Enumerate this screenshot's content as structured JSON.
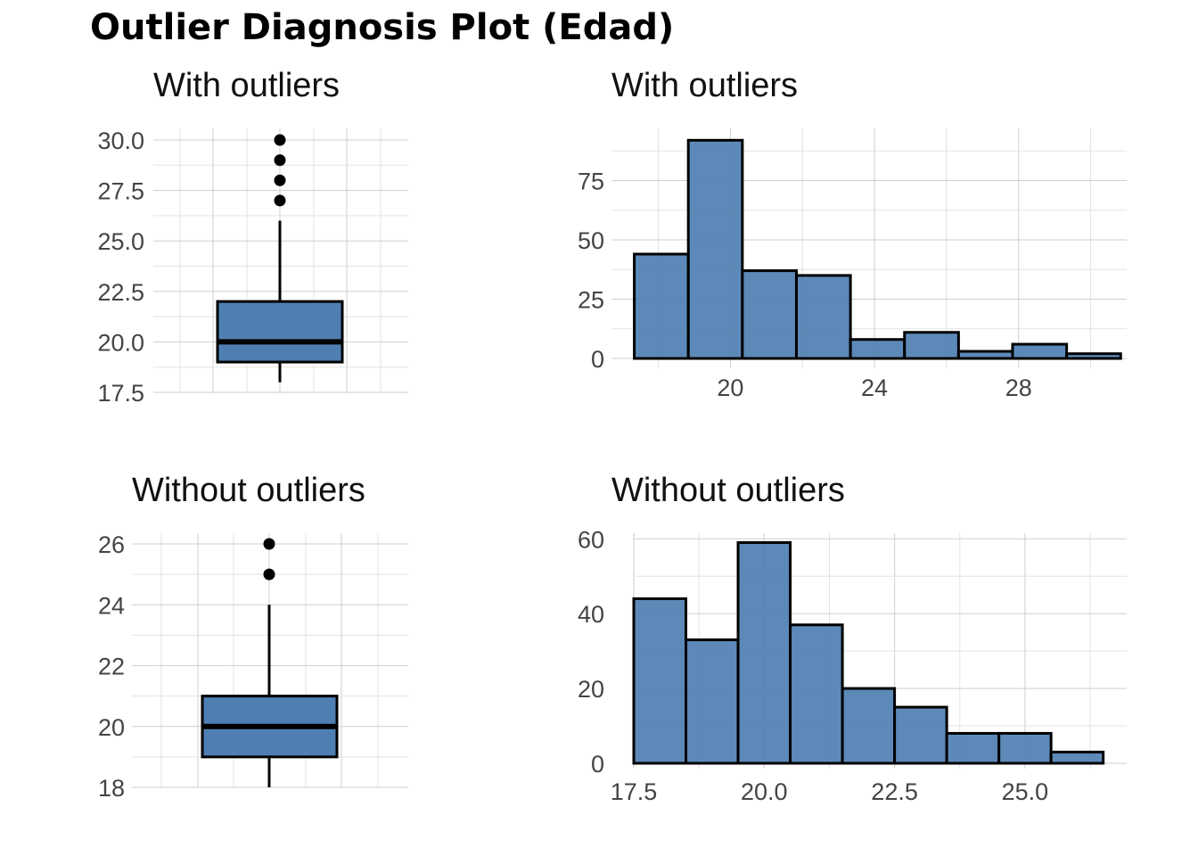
{
  "title": "Outlier Diagnosis Plot (Edad)",
  "colors": {
    "fill": "#4f7fb2",
    "outline": "#000000",
    "grid_major": "#cfcfcf",
    "grid_minor": "#e3e3e3",
    "tick_text": "#444444"
  },
  "chart_data": [
    {
      "type": "box",
      "subtitle": "With outliers",
      "ylim": [
        17.5,
        30.0
      ],
      "yticks": [
        17.5,
        20.0,
        22.5,
        25.0,
        27.5,
        30.0
      ],
      "ytick_labels": [
        "17.5",
        "20.0",
        "22.5",
        "25.0",
        "27.5",
        "30.0"
      ],
      "box": {
        "min": 18,
        "q1": 19,
        "median": 20,
        "q3": 22,
        "max": 26
      },
      "outliers": [
        27,
        28,
        29,
        30
      ],
      "grid": true
    },
    {
      "type": "bar",
      "subtitle": "With outliers",
      "bins": [
        {
          "x0": 17.333,
          "x1": 18.833,
          "count": 44
        },
        {
          "x0": 18.833,
          "x1": 20.333,
          "count": 92
        },
        {
          "x0": 20.333,
          "x1": 21.833,
          "count": 37
        },
        {
          "x0": 21.833,
          "x1": 23.333,
          "count": 35
        },
        {
          "x0": 23.333,
          "x1": 24.833,
          "count": 8
        },
        {
          "x0": 24.833,
          "x1": 26.333,
          "count": 11
        },
        {
          "x0": 26.333,
          "x1": 27.833,
          "count": 3
        },
        {
          "x0": 27.833,
          "x1": 29.333,
          "count": 6
        },
        {
          "x0": 29.333,
          "x1": 30.833,
          "count": 2
        }
      ],
      "xlim": [
        16.7,
        31.0
      ],
      "xticks": [
        20,
        24,
        28
      ],
      "xtick_labels": [
        "20",
        "24",
        "28"
      ],
      "ylim": [
        0,
        97
      ],
      "yticks": [
        0,
        25,
        50,
        75
      ],
      "ytick_labels": [
        "0",
        "25",
        "50",
        "75"
      ],
      "grid": true
    },
    {
      "type": "box",
      "subtitle": "Without outliers",
      "ylim": [
        18,
        26
      ],
      "yticks": [
        18,
        20,
        22,
        24,
        26
      ],
      "ytick_labels": [
        "18",
        "20",
        "22",
        "24",
        "26"
      ],
      "box": {
        "min": 18,
        "q1": 19,
        "median": 20,
        "q3": 21,
        "max": 24
      },
      "outliers": [
        25,
        26
      ],
      "grid": true
    },
    {
      "type": "bar",
      "subtitle": "Without outliers",
      "bins": [
        {
          "x0": 17.5,
          "x1": 18.5,
          "count": 44
        },
        {
          "x0": 18.5,
          "x1": 19.5,
          "count": 33
        },
        {
          "x0": 19.5,
          "x1": 20.5,
          "count": 59
        },
        {
          "x0": 20.5,
          "x1": 21.5,
          "count": 37
        },
        {
          "x0": 21.5,
          "x1": 22.5,
          "count": 20
        },
        {
          "x0": 22.5,
          "x1": 23.5,
          "count": 15
        },
        {
          "x0": 23.5,
          "x1": 24.5,
          "count": 8
        },
        {
          "x0": 24.5,
          "x1": 25.5,
          "count": 8
        },
        {
          "x0": 25.5,
          "x1": 26.5,
          "count": 3
        }
      ],
      "xlim": [
        17.5,
        26.95
      ],
      "xticks": [
        17.5,
        20.0,
        22.5,
        25.0
      ],
      "xtick_labels": [
        "17.5",
        "20.0",
        "22.5",
        "25.0"
      ],
      "ylim": [
        0,
        61.5
      ],
      "yticks": [
        0,
        20,
        40,
        60
      ],
      "ytick_labels": [
        "0",
        "20",
        "40",
        "60"
      ],
      "grid": true
    }
  ]
}
